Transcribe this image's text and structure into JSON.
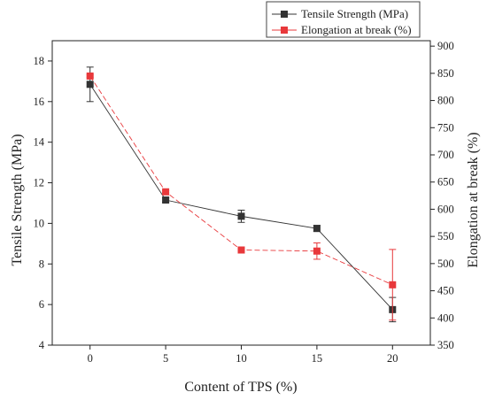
{
  "chart_data": {
    "type": "line",
    "xlabel": "Content of TPS (%)",
    "ylabel_left": "Tensile Strength (MPa)",
    "ylabel_right": "Elongation at break (%)",
    "x": [
      0,
      5,
      10,
      15,
      20
    ],
    "x_ticks": [
      "0",
      "5",
      "10",
      "15",
      "20"
    ],
    "xlim": [
      -2.5,
      22.5
    ],
    "ylim_left": [
      4,
      19
    ],
    "ylim_right": [
      350,
      910
    ],
    "y_ticks_left": [
      "4",
      "6",
      "8",
      "10",
      "12",
      "14",
      "16",
      "18"
    ],
    "y_ticks_right": [
      "350",
      "400",
      "450",
      "500",
      "550",
      "600",
      "650",
      "700",
      "750",
      "800",
      "850",
      "900"
    ],
    "legend_position": "top-right",
    "grid": false,
    "series": [
      {
        "name": "Tensile Strength (MPa)",
        "axis": "left",
        "color": "#333333",
        "line_style": "solid",
        "values": [
          16.85,
          11.15,
          10.35,
          9.75,
          5.75
        ],
        "error": [
          0.85,
          0.1,
          0.3,
          0.15,
          0.6
        ]
      },
      {
        "name": "Elongation at break (%)",
        "axis": "right",
        "color": "#e8383b",
        "line_style": "dashed",
        "values": [
          845,
          632,
          525,
          523,
          461
        ],
        "error": [
          2,
          2,
          0,
          15,
          65
        ]
      }
    ]
  }
}
